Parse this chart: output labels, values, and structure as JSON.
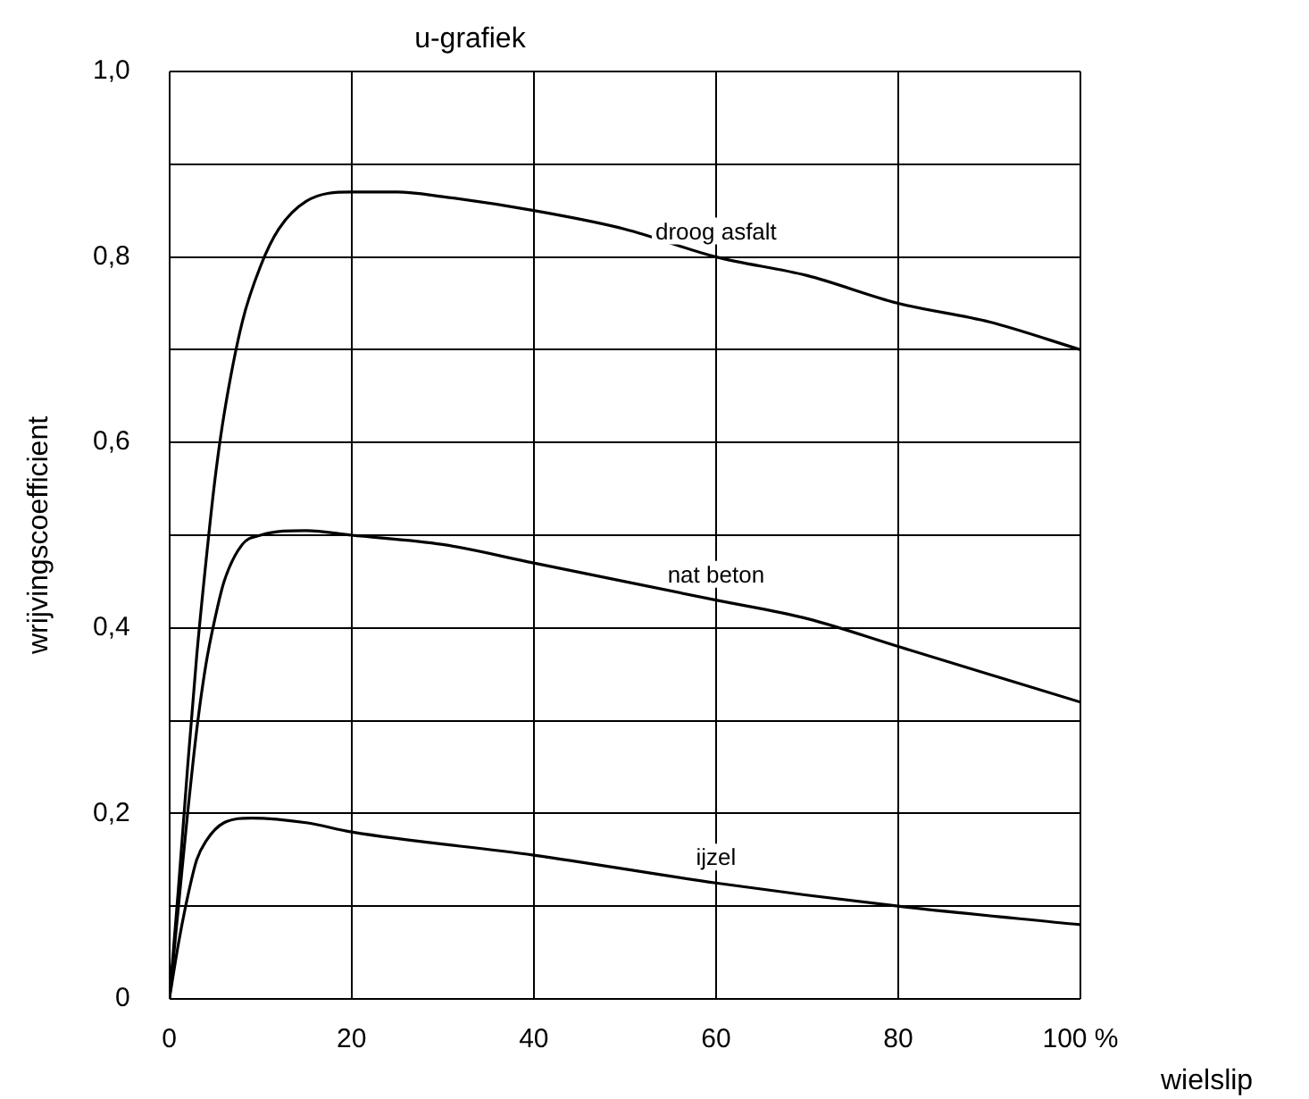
{
  "chart_data": {
    "type": "line",
    "title": "u-grafiek",
    "xlabel": "wielslip",
    "ylabel": "wrijvingscoefficient",
    "xlim": [
      0,
      100
    ],
    "ylim": [
      0,
      1
    ],
    "xticks": [
      0,
      20,
      40,
      60,
      80,
      {
        "value": 100,
        "label": "100 %"
      }
    ],
    "yticks": [
      0,
      {
        "value": 0.1,
        "label": null
      },
      {
        "value": 0.2,
        "label": "0,2"
      },
      {
        "value": 0.3,
        "label": null
      },
      {
        "value": 0.4,
        "label": "0,4"
      },
      {
        "value": 0.5,
        "label": null
      },
      {
        "value": 0.6,
        "label": "0,6"
      },
      {
        "value": 0.7,
        "label": null
      },
      {
        "value": 0.8,
        "label": "0,8"
      },
      {
        "value": 0.9,
        "label": null
      },
      {
        "value": 1,
        "label": "1,0"
      }
    ],
    "grid": true,
    "legend": false,
    "marker": "none",
    "line_style": "solid",
    "series": [
      {
        "name": "droog asfalt",
        "color": "#000000",
        "x": [
          0,
          1,
          2,
          3,
          4,
          5,
          6,
          8,
          10,
          12,
          15,
          20,
          25,
          30,
          40,
          50,
          60,
          70,
          80,
          90,
          100
        ],
        "values": [
          0,
          0.12,
          0.25,
          0.37,
          0.47,
          0.56,
          0.63,
          0.73,
          0.79,
          0.83,
          0.86,
          0.87,
          0.87,
          0.865,
          0.85,
          0.83,
          0.8,
          0.78,
          0.75,
          0.73,
          0.7
        ]
      },
      {
        "name": "nat beton",
        "color": "#000000",
        "x": [
          0,
          1,
          2,
          3,
          4,
          5,
          6,
          8,
          10,
          15,
          20,
          30,
          40,
          50,
          60,
          70,
          80,
          90,
          100
        ],
        "values": [
          0,
          0.1,
          0.2,
          0.29,
          0.36,
          0.41,
          0.45,
          0.49,
          0.5,
          0.505,
          0.5,
          0.49,
          0.47,
          0.45,
          0.43,
          0.41,
          0.38,
          0.35,
          0.32
        ]
      },
      {
        "name": "ijzel",
        "color": "#000000",
        "x": [
          0,
          1,
          2,
          3,
          4,
          6,
          9,
          15,
          20,
          40,
          60,
          80,
          100
        ],
        "values": [
          0,
          0.06,
          0.11,
          0.15,
          0.17,
          0.19,
          0.195,
          0.19,
          0.18,
          0.155,
          0.125,
          0.1,
          0.08
        ]
      }
    ]
  }
}
